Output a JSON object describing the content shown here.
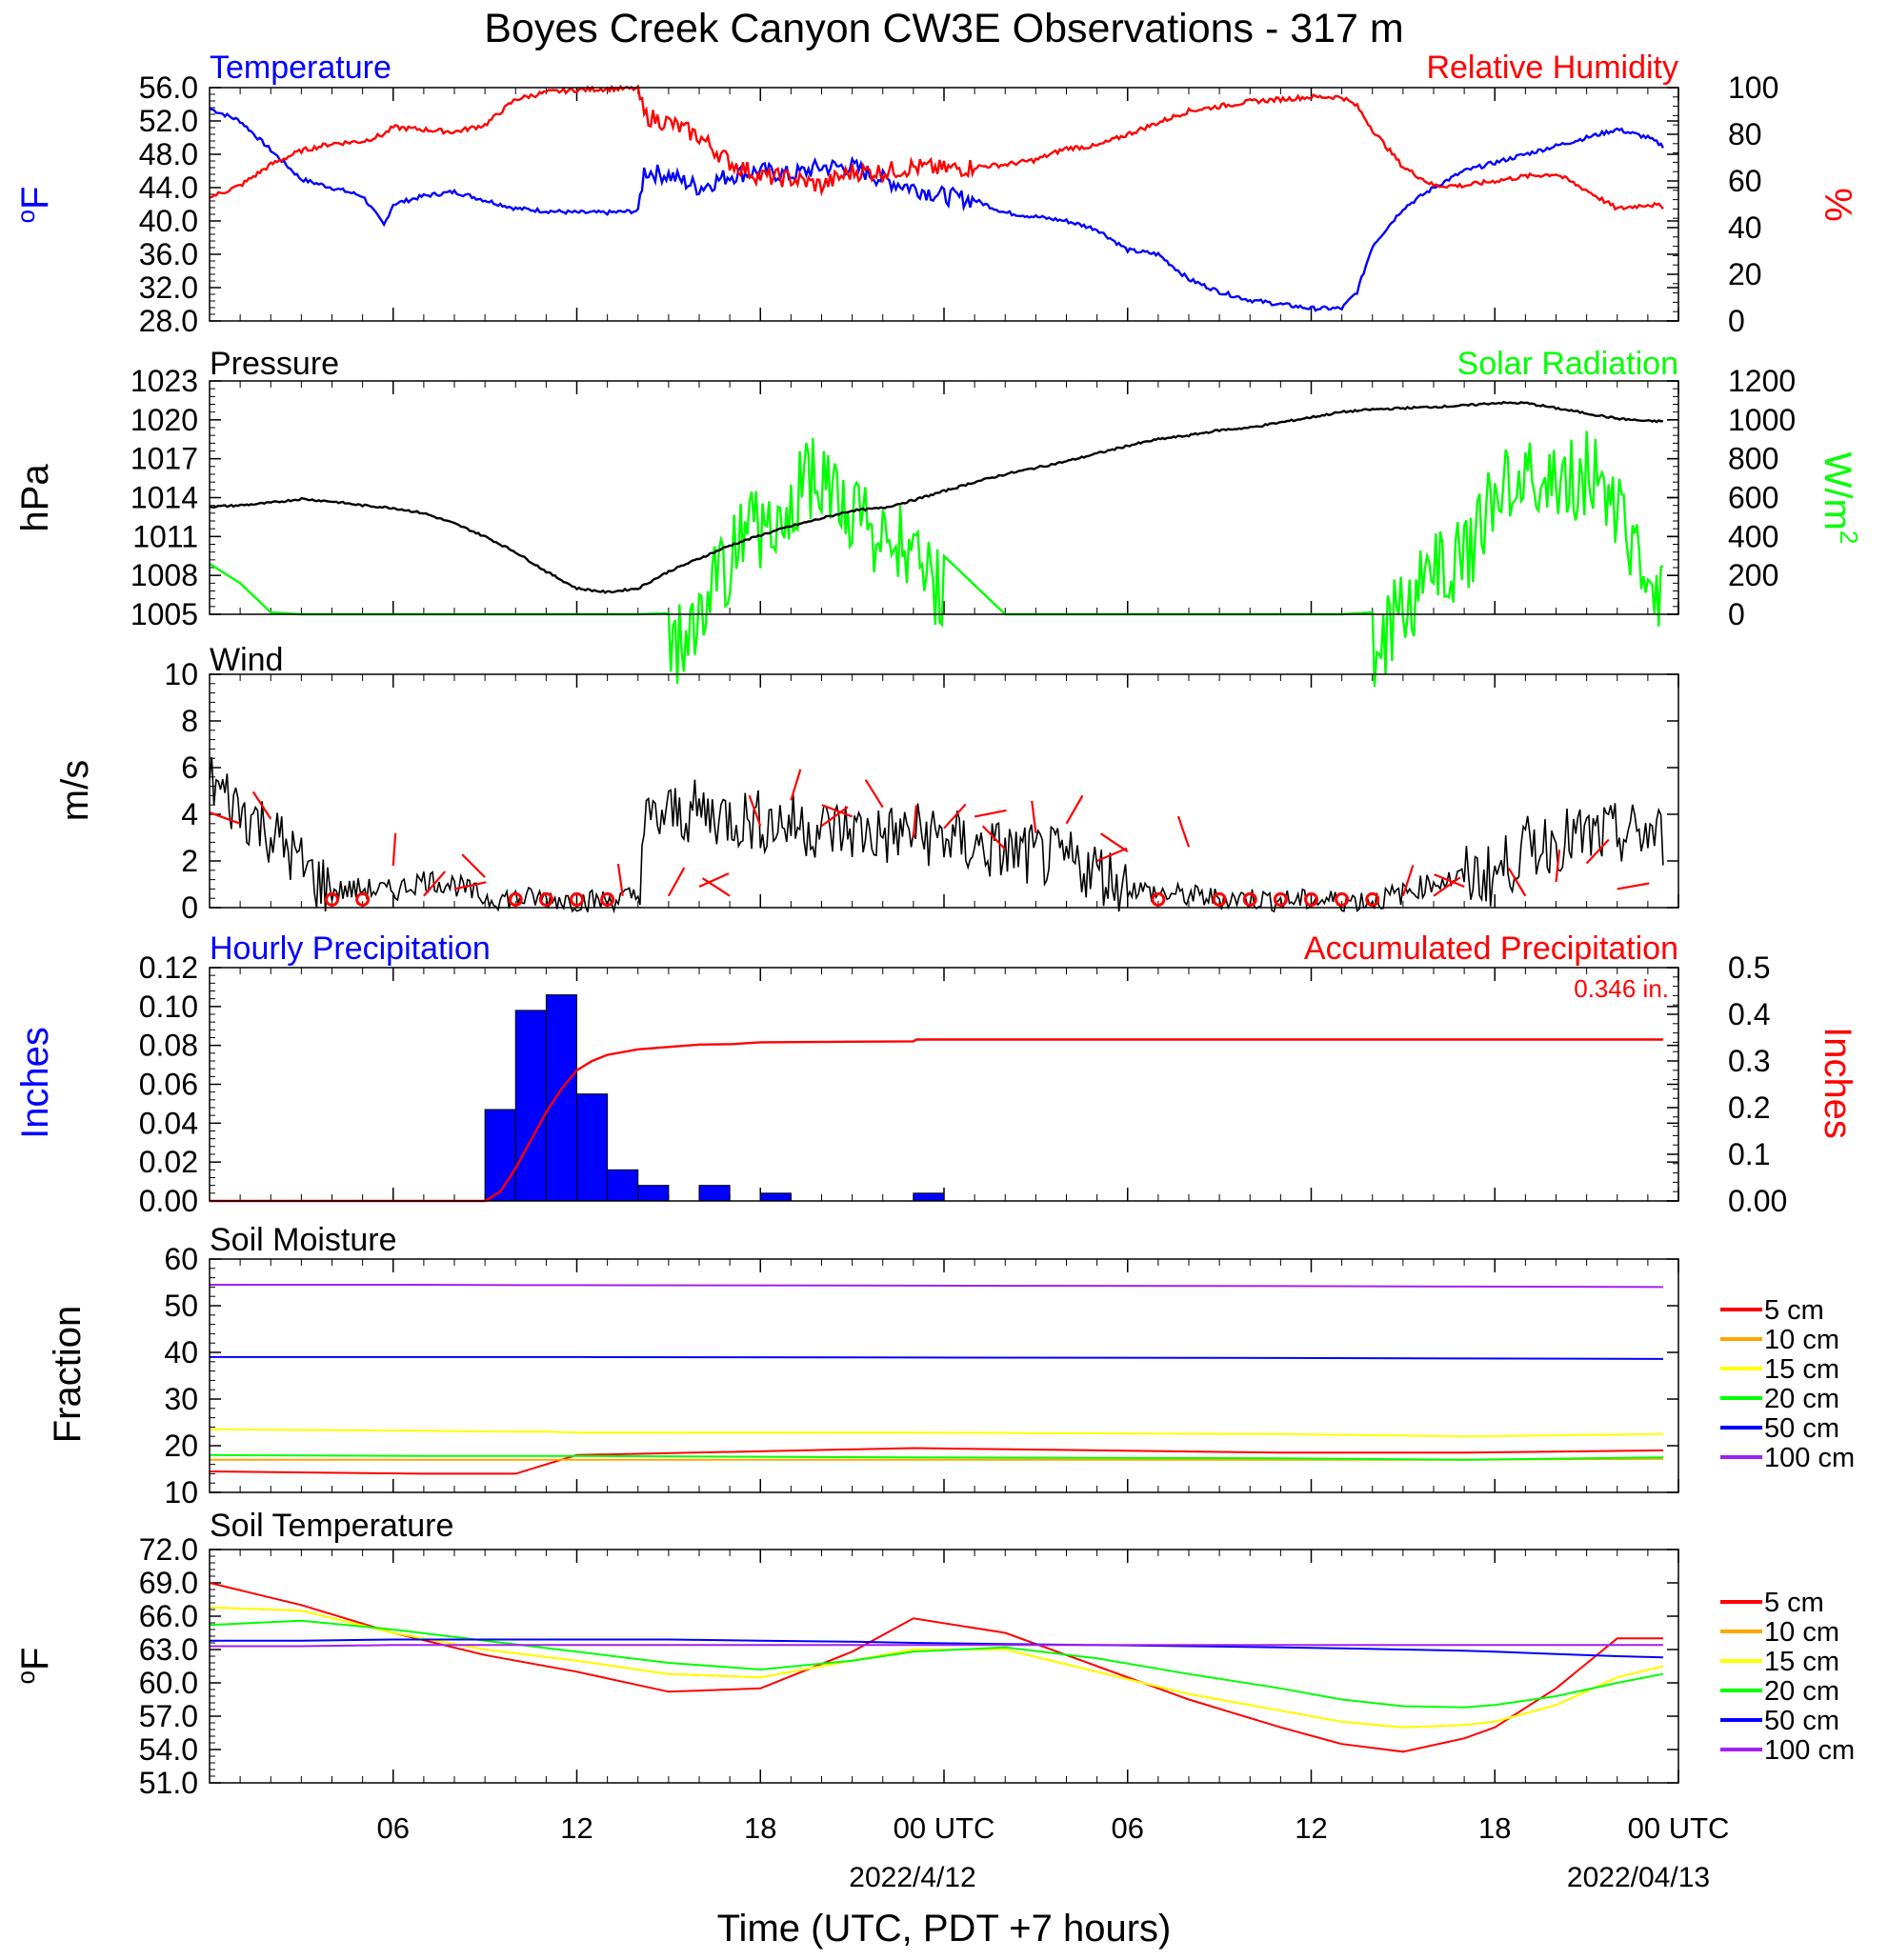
{
  "title": "Boyes Creek Canyon CW3E Observations - 317 m",
  "xaxis": {
    "ticks": [
      "06",
      "12",
      "18",
      "00 UTC",
      "06",
      "12",
      "18",
      "00 UTC"
    ],
    "date_labels": [
      "2022/4/12",
      "2022/04/13"
    ],
    "label": "Time (UTC, PDT +7 hours)"
  },
  "colors": {
    "temperature": "#0000ff",
    "humidity": "#ff0000",
    "pressure": "#000000",
    "solar": "#00ff00",
    "wind": "#000000",
    "barb": "#ff0000",
    "precip_bar": "#0000ff",
    "precip_accum": "#ff0000",
    "s5": "#ff0000",
    "s10": "#ffa500",
    "s15": "#ffff00",
    "s20": "#00ff00",
    "s50": "#0000ff",
    "s100": "#a020f0"
  },
  "chart_data": [
    {
      "type": "line",
      "panel": "temperature_humidity",
      "title_left": "Temperature",
      "title_right": "Relative Humidity",
      "ylabel_left": "oF",
      "ylabel_right": "%",
      "ylim_left": [
        28,
        56
      ],
      "ylim_right": [
        0,
        100
      ],
      "yticks_left": [
        "56.0",
        "52.0",
        "48.0",
        "44.0",
        "40.0",
        "36.0",
        "32.0",
        "28.0"
      ],
      "yticks_right": [
        "100",
        "80",
        "60",
        "40",
        "20",
        "0"
      ],
      "x_hours": [
        1,
        2,
        3,
        4,
        5,
        6,
        6.7,
        7,
        8,
        9,
        10,
        11,
        12,
        13,
        14,
        15,
        15.2,
        16,
        17,
        18,
        19,
        20,
        21,
        22,
        23,
        24,
        25,
        26,
        27,
        28,
        29,
        30,
        31,
        32,
        33,
        34,
        35,
        36,
        37,
        38,
        38.5,
        39,
        40,
        41,
        42,
        43,
        44,
        45,
        46,
        47,
        48,
        48.5
      ],
      "series": [
        {
          "name": "Temperature",
          "axis": "left",
          "values": [
            53.5,
            52,
            48.5,
            45,
            44,
            43,
            39.5,
            42,
            43,
            43.5,
            42.5,
            41.5,
            41.2,
            41,
            41,
            41.2,
            46,
            45.5,
            44,
            45.5,
            46,
            45.5,
            46.5,
            46.5,
            45,
            44,
            43,
            42.5,
            41,
            40.5,
            40,
            39,
            36.5,
            36,
            33,
            31.5,
            30.5,
            30,
            29.5,
            29.5,
            31.5,
            37,
            41.5,
            44,
            46,
            47,
            48,
            49,
            50,
            51,
            50,
            49
          ]
        },
        {
          "name": "Relative Humidity",
          "axis": "right",
          "values": [
            53,
            58,
            67,
            73,
            76,
            77,
            80,
            83,
            82,
            81,
            84,
            95,
            98,
            99,
            99.5,
            99.5,
            88,
            85,
            79,
            68,
            62,
            61,
            58,
            64,
            64,
            66,
            65,
            66,
            67,
            69,
            74,
            75,
            80,
            85,
            90,
            92,
            94,
            95,
            96,
            96,
            92,
            82,
            66,
            58,
            58,
            60,
            62,
            63,
            56,
            48,
            50,
            49
          ]
        }
      ]
    },
    {
      "type": "line",
      "panel": "pressure_solar",
      "title_left": "Pressure",
      "title_right": "Solar Radiation",
      "ylabel_left": "hPa",
      "ylabel_right": "W/m2",
      "ylim_left": [
        1005,
        1023
      ],
      "ylim_right": [
        0,
        1200
      ],
      "yticks_left": [
        "1023",
        "1020",
        "1017",
        "1014",
        "1011",
        "1008",
        "1005"
      ],
      "yticks_right": [
        "1200",
        "1000",
        "800",
        "600",
        "400",
        "200",
        "0"
      ],
      "x_hours": [
        1,
        2,
        3,
        4,
        5,
        6,
        7,
        8,
        9,
        10,
        11,
        12,
        13,
        14,
        15,
        16,
        17,
        18,
        19,
        20,
        21,
        22,
        23,
        24,
        25,
        26,
        27,
        28,
        29,
        30,
        31,
        32,
        33,
        34,
        35,
        36,
        37,
        38,
        39,
        40,
        41,
        42,
        43,
        44,
        45,
        46,
        47,
        48,
        48.5
      ],
      "series": [
        {
          "name": "Pressure",
          "axis": "left",
          "values": [
            1013.3,
            1013.4,
            1013.6,
            1013.9,
            1013.7,
            1013.4,
            1013.2,
            1012.8,
            1012.0,
            1011.0,
            1009.8,
            1008.3,
            1007.0,
            1006.7,
            1007.0,
            1008.3,
            1009.3,
            1010.3,
            1011.1,
            1011.8,
            1012.4,
            1013.0,
            1013.2,
            1013.8,
            1014.5,
            1015.2,
            1015.8,
            1016.3,
            1016.8,
            1017.4,
            1018.0,
            1018.5,
            1018.8,
            1019.2,
            1019.4,
            1019.8,
            1020.2,
            1020.6,
            1020.8,
            1020.9,
            1021.0,
            1021.1,
            1021.3,
            1021.3,
            1020.9,
            1020.5,
            1020.1,
            1019.9,
            1019.9
          ]
        },
        {
          "name": "Solar Radiation",
          "axis": "right",
          "values": [
            260,
            160,
            10,
            0,
            0,
            0,
            0,
            0,
            0,
            0,
            0,
            0,
            0,
            0,
            0,
            5,
            200,
            520,
            680,
            820,
            950,
            700,
            650,
            550,
            300,
            150,
            0,
            0,
            0,
            0,
            0,
            0,
            0,
            0,
            0,
            0,
            0,
            0,
            10,
            250,
            420,
            520,
            850,
            950,
            900,
            950,
            800,
            450,
            250
          ]
        }
      ]
    },
    {
      "type": "line",
      "panel": "wind",
      "title_left": "Wind",
      "ylabel_left": "m/s",
      "ylim_left": [
        0,
        10
      ],
      "yticks_left": [
        "10",
        "8",
        "6",
        "4",
        "2",
        "0"
      ],
      "x_hours": [
        1,
        1.5,
        2,
        2.5,
        3,
        3.5,
        4,
        4.5,
        5,
        6,
        7,
        8,
        9,
        10,
        11,
        12,
        13,
        14,
        15,
        15.2,
        16,
        17,
        18,
        19,
        20,
        21,
        22,
        23,
        24,
        25,
        26,
        27,
        28,
        29,
        30,
        31,
        32,
        33,
        34,
        35,
        36,
        37,
        38,
        39,
        40,
        41,
        42,
        43,
        44,
        45,
        46,
        47,
        48,
        48.5
      ],
      "series": [
        {
          "name": "Wind",
          "axis": "left",
          "values": [
            5.5,
            4.8,
            4.2,
            3.8,
            3.2,
            2.6,
            1.8,
            1.2,
            0.7,
            0.8,
            0.7,
            1.2,
            1.0,
            0.4,
            0.4,
            0.4,
            0.3,
            0.3,
            0.5,
            3.5,
            4.0,
            4.1,
            3.9,
            3.7,
            3.6,
            3.4,
            3.3,
            3.1,
            3.2,
            3.0,
            2.6,
            2.4,
            2.2,
            2.0,
            1.6,
            0.9,
            0.6,
            0.5,
            0.4,
            0.4,
            0.3,
            0.3,
            0.3,
            0.3,
            0.6,
            1.1,
            1.3,
            1.4,
            2.5,
            2.9,
            3.0,
            3.1,
            3.2,
            3.0
          ]
        }
      ],
      "calm_marker_hours": [
        5,
        6,
        11,
        12,
        13,
        14,
        32,
        34,
        35,
        36,
        37,
        38,
        39
      ]
    },
    {
      "type": "bar",
      "panel": "precipitation",
      "title_left": "Hourly Precipitation",
      "title_right": "Accumulated Precipitation",
      "annotation": "0.346 in.",
      "ylabel_left": "Inches",
      "ylabel_right": "Inches",
      "ylim_left": [
        0,
        0.12
      ],
      "ylim_right": [
        0,
        0.5
      ],
      "yticks_left": [
        "0.12",
        "0.10",
        "0.08",
        "0.06",
        "0.04",
        "0.02",
        "0.00"
      ],
      "yticks_right": [
        "0.5",
        "0.4",
        "0.3",
        "0.2",
        "0.1",
        "0.00"
      ],
      "bars_start_hour": [
        10,
        11,
        12,
        13,
        14,
        15,
        17,
        19,
        24
      ],
      "bars_values": [
        0.047,
        0.098,
        0.106,
        0.055,
        0.016,
        0.008,
        0.008,
        0.004,
        0.004
      ],
      "accum_x_hours": [
        1,
        10,
        10.5,
        11,
        11.5,
        12,
        12.5,
        13,
        13.5,
        14,
        15,
        16,
        17,
        18,
        19,
        24,
        24.1,
        48.5
      ],
      "accum_values": [
        0,
        0,
        0.02,
        0.07,
        0.13,
        0.19,
        0.24,
        0.28,
        0.3,
        0.313,
        0.325,
        0.33,
        0.335,
        0.336,
        0.34,
        0.342,
        0.346,
        0.346
      ]
    },
    {
      "type": "line",
      "panel": "soil_moisture",
      "title_left": "Soil Moisture",
      "ylabel_left": "Fraction",
      "ylim_left": [
        10,
        60
      ],
      "yticks_left": [
        "60",
        "50",
        "40",
        "30",
        "20",
        "10"
      ],
      "x_hours": [
        1,
        8,
        11,
        12,
        13,
        24,
        36,
        42,
        48.5
      ],
      "series": [
        {
          "name": "5 cm",
          "values": [
            14.5,
            14.0,
            14.0,
            16.0,
            18.0,
            19.5,
            18.5,
            18.5,
            19.0
          ]
        },
        {
          "name": "10 cm",
          "values": [
            17.0,
            17.0,
            17.0,
            17.0,
            17.0,
            17.0,
            17.0,
            17.0,
            17.2
          ]
        },
        {
          "name": "15 cm",
          "values": [
            23.5,
            23.2,
            23.0,
            23.0,
            22.8,
            22.8,
            22.5,
            22.0,
            22.5
          ]
        },
        {
          "name": "20 cm",
          "values": [
            18.0,
            17.8,
            17.8,
            17.8,
            17.8,
            17.5,
            17.3,
            17.0,
            17.5
          ]
        },
        {
          "name": "50 cm",
          "values": [
            39.0,
            39.0,
            39.0,
            39.0,
            39.0,
            38.9,
            38.8,
            38.7,
            38.6
          ]
        },
        {
          "name": "100 cm",
          "values": [
            54.5,
            54.5,
            54.4,
            54.4,
            54.4,
            54.3,
            54.2,
            54.1,
            54.0
          ]
        }
      ],
      "legend": [
        "5 cm",
        "10 cm",
        "15 cm",
        "20 cm",
        "50 cm",
        "100 cm"
      ]
    },
    {
      "type": "line",
      "panel": "soil_temperature",
      "title_left": "Soil Temperature",
      "ylabel_left": "oF",
      "ylim_left": [
        51,
        72
      ],
      "yticks_left": [
        "72.0",
        "69.0",
        "66.0",
        "63.0",
        "60.0",
        "57.0",
        "54.0",
        "51.0"
      ],
      "x_hours": [
        1,
        4,
        7,
        10,
        13,
        16,
        19,
        22,
        24,
        27,
        30,
        33,
        36,
        38,
        40,
        42,
        43,
        45,
        47,
        48.5
      ],
      "series": [
        {
          "name": "5 cm",
          "values": [
            69.0,
            67.0,
            64.5,
            62.5,
            61.0,
            59.2,
            59.5,
            62.8,
            65.8,
            64.5,
            61.5,
            58.5,
            56.0,
            54.5,
            53.8,
            55.0,
            56.0,
            59.5,
            64.0,
            64.0
          ]
        },
        {
          "name": "10 cm",
          "values": [
            66.8,
            66.5,
            64.5,
            63.0,
            62.0,
            60.8,
            60.5,
            62.0,
            63.0,
            63.0,
            61.0,
            59.0,
            57.5,
            56.5,
            56.0,
            56.2,
            56.5,
            58.0,
            60.5,
            61.5
          ]
        },
        {
          "name": "15 cm",
          "values": [
            66.8,
            66.5,
            64.5,
            63.0,
            62.0,
            60.8,
            60.5,
            62.0,
            63.0,
            63.0,
            61.0,
            59.0,
            57.5,
            56.5,
            56.0,
            56.2,
            56.5,
            58.0,
            60.5,
            61.5
          ]
        },
        {
          "name": "20 cm",
          "values": [
            65.2,
            65.6,
            64.8,
            63.8,
            62.8,
            61.8,
            61.2,
            62.0,
            62.8,
            63.2,
            62.2,
            60.8,
            59.5,
            58.5,
            57.9,
            57.8,
            58.0,
            58.8,
            60.0,
            60.8
          ]
        },
        {
          "name": "50 cm",
          "values": [
            63.8,
            63.8,
            63.9,
            63.9,
            63.9,
            63.9,
            63.8,
            63.7,
            63.6,
            63.5,
            63.4,
            63.3,
            63.2,
            63.1,
            63.0,
            62.9,
            62.8,
            62.6,
            62.4,
            62.3
          ]
        },
        {
          "name": "100 cm",
          "values": [
            63.3,
            63.3,
            63.4,
            63.4,
            63.4,
            63.4,
            63.4,
            63.4,
            63.4,
            63.4,
            63.4,
            63.4,
            63.4,
            63.4,
            63.4,
            63.4,
            63.4,
            63.4,
            63.4,
            63.4
          ]
        }
      ],
      "legend": [
        "5 cm",
        "10 cm",
        "15 cm",
        "20 cm",
        "50 cm",
        "100 cm"
      ]
    }
  ]
}
